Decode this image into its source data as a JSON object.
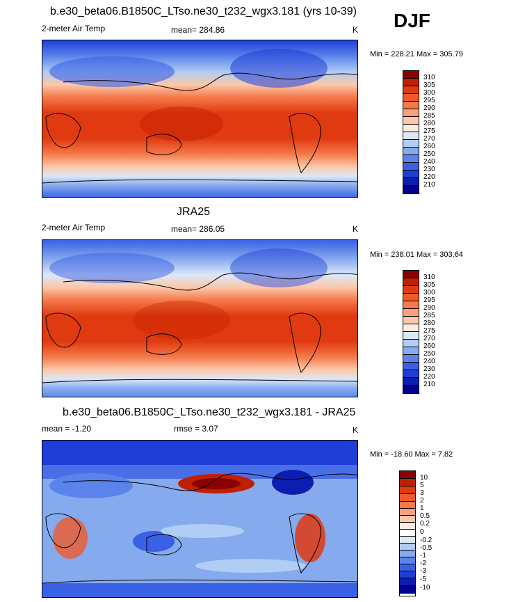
{
  "season": "DJF",
  "panels": [
    {
      "title": "b.e30_beta06.B1850C_LTso.ne30_t232_wgx3.181 (yrs 10-39)",
      "left_label": "2-meter Air Temp",
      "center_label": "mean= 284.86",
      "units": "K",
      "minmax": "Min = 228.21 Max = 305.79",
      "colorbar_ticks": [
        "310",
        "305",
        "300",
        "295",
        "290",
        "285",
        "280",
        "275",
        "270",
        "260",
        "250",
        "240",
        "230",
        "220",
        "210"
      ]
    },
    {
      "title": "JRA25",
      "left_label": "2-meter Air Temp",
      "center_label": "mean= 286.05",
      "units": "K",
      "minmax": "Min = 238.01 Max = 303.64",
      "colorbar_ticks": [
        "310",
        "305",
        "300",
        "295",
        "290",
        "285",
        "280",
        "275",
        "270",
        "260",
        "250",
        "240",
        "230",
        "220",
        "210"
      ]
    },
    {
      "title": "b.e30_beta06.B1850C_LTso.ne30_t232_wgx3.181 - JRA25",
      "left_label": "mean =  -1.20",
      "center_label": "rmse =   3.07",
      "units": "K",
      "minmax": "Min = -18.60 Max =   7.82",
      "colorbar_ticks": [
        "10",
        "5",
        "3",
        "2",
        "1",
        "0.5",
        "0.2",
        "0",
        "-0.2",
        "-0.5",
        "-1",
        "-2",
        "-3",
        "-5",
        "-10"
      ]
    }
  ],
  "colors": {
    "abs_scale": [
      "#8b0000",
      "#c02000",
      "#e03a10",
      "#f05a2a",
      "#f5794a",
      "#f8a07a",
      "#fbc8aa",
      "#fdebdc",
      "#dbe8f8",
      "#b0cdf3",
      "#86aaee",
      "#5b84ea",
      "#3a60e6",
      "#1f3ed8",
      "#0c1eb0",
      "#00008b"
    ],
    "diff_scale": [
      "#8b0000",
      "#c02000",
      "#e03a10",
      "#f05a2a",
      "#f5794a",
      "#f8a07a",
      "#fbc8aa",
      "#fdebdc",
      "#ffffff",
      "#dbe8f8",
      "#b0cdf3",
      "#86aaee",
      "#5b84ea",
      "#3a60e6",
      "#1f3ed8",
      "#0c1eb0",
      "#00008b"
    ]
  }
}
